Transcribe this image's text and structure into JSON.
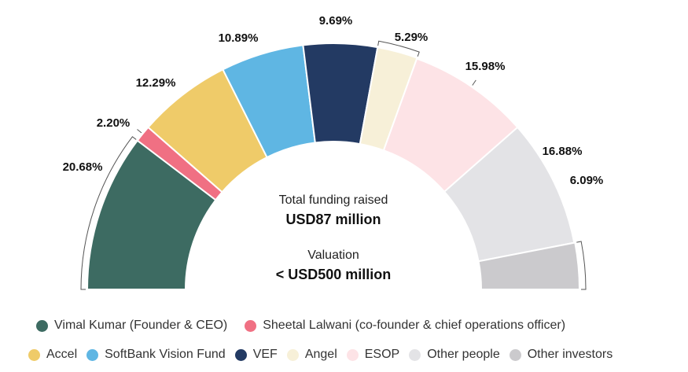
{
  "chart_data": {
    "type": "pie",
    "variant": "semi-donut",
    "center": {
      "funding_label": "Total funding raised",
      "funding_value": "USD87 million",
      "valuation_label": "Valuation",
      "valuation_value": "< USD500 million"
    },
    "slices": [
      {
        "name": "Vimal Kumar (Founder & CEO)",
        "value": 20.68,
        "label": "20.68%",
        "color": "#3d6b62"
      },
      {
        "name": "Sheetal Lalwani (co-founder  & chief operations officer)",
        "value": 2.2,
        "label": "2.20%",
        "color": "#f07083"
      },
      {
        "name": "Accel",
        "value": 12.29,
        "label": "12.29%",
        "color": "#efcb69"
      },
      {
        "name": "SoftBank Vision Fund",
        "value": 10.89,
        "label": "10.89%",
        "color": "#5fb6e3"
      },
      {
        "name": "VEF",
        "value": 9.69,
        "label": "9.69%",
        "color": "#233a63"
      },
      {
        "name": "Angel",
        "value": 5.29,
        "label": "5.29%",
        "color": "#f7f0d8"
      },
      {
        "name": "ESOP",
        "value": 15.98,
        "label": "15.98%",
        "color": "#fde3e6"
      },
      {
        "name": "Other people",
        "value": 16.88,
        "label": "16.88%",
        "color": "#e3e3e6"
      },
      {
        "name": "Other investors",
        "value": 6.09,
        "label": "6.09%",
        "color": "#cbcacd"
      }
    ],
    "legend_placement": "bottom"
  }
}
